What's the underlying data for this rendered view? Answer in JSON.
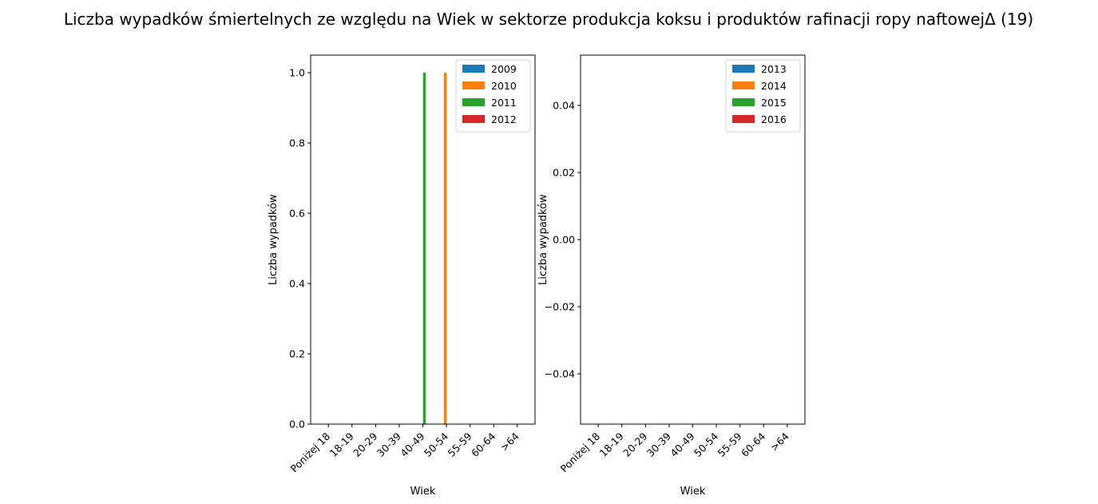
{
  "chart_data": {
    "title": "Liczba wypadków śmiertelnych ze względu na Wiek w sektorze produkcja koksu i produktów rafinacji ropy naftowejΔ (19)",
    "type": "bar",
    "charts": [
      {
        "type": "bar",
        "categories": [
          "Poniżej 18",
          "18-19",
          "20-29",
          "30-39",
          "40-49",
          "50-54",
          "55-59",
          "60-64",
          ">64"
        ],
        "xlabel": "Wiek",
        "ylabel": "Liczba wypadków",
        "ylim": [
          0,
          1.05
        ],
        "yticks": [
          "0.0",
          "0.2",
          "0.4",
          "0.6",
          "0.8",
          "1.0"
        ],
        "legend_position": "top-right",
        "series": [
          {
            "name": "2009",
            "color": "#1f77b4",
            "values": [
              0,
              0,
              0,
              0,
              0,
              0,
              0,
              0,
              0
            ]
          },
          {
            "name": "2010",
            "color": "#ff7f0e",
            "values": [
              0,
              0,
              0,
              0,
              0,
              1,
              0,
              0,
              0
            ]
          },
          {
            "name": "2011",
            "color": "#2ca02c",
            "values": [
              0,
              0,
              0,
              0,
              1,
              0,
              0,
              0,
              0
            ]
          },
          {
            "name": "2012",
            "color": "#d62728",
            "values": [
              0,
              0,
              0,
              0,
              0,
              0,
              0,
              0,
              0
            ]
          }
        ]
      },
      {
        "type": "bar",
        "categories": [
          "Poniżej 18",
          "18-19",
          "20-29",
          "30-39",
          "40-49",
          "50-54",
          "55-59",
          "60-64",
          ">64"
        ],
        "xlabel": "Wiek",
        "ylabel": "Liczba wypadków",
        "ylim": [
          -0.055,
          0.055
        ],
        "yticks": [
          "−0.04",
          "−0.02",
          "0.00",
          "0.02",
          "0.04"
        ],
        "legend_position": "top-right",
        "series": [
          {
            "name": "2013",
            "color": "#1f77b4",
            "values": [
              0,
              0,
              0,
              0,
              0,
              0,
              0,
              0,
              0
            ]
          },
          {
            "name": "2014",
            "color": "#ff7f0e",
            "values": [
              0,
              0,
              0,
              0,
              0,
              0,
              0,
              0,
              0
            ]
          },
          {
            "name": "2015",
            "color": "#2ca02c",
            "values": [
              0,
              0,
              0,
              0,
              0,
              0,
              0,
              0,
              0
            ]
          },
          {
            "name": "2016",
            "color": "#d62728",
            "values": [
              0,
              0,
              0,
              0,
              0,
              0,
              0,
              0,
              0
            ]
          }
        ]
      }
    ]
  }
}
